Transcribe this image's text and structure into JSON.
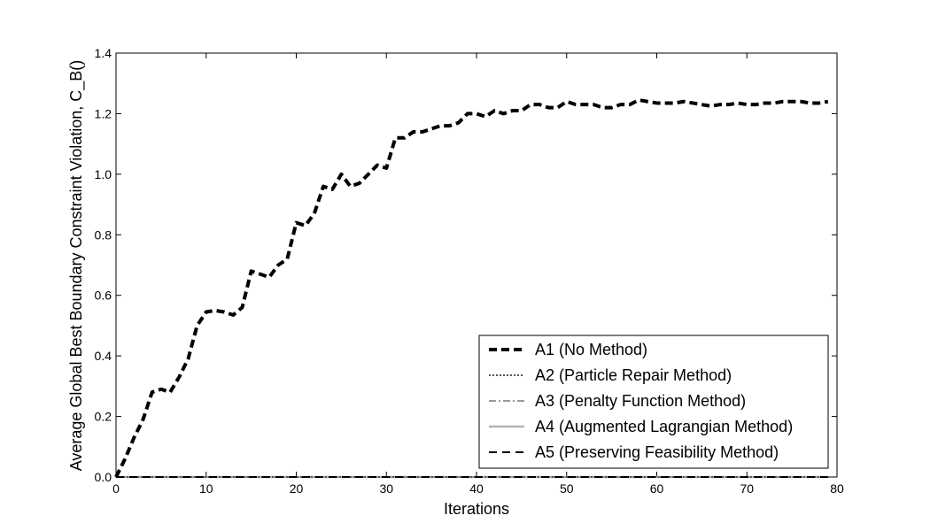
{
  "chart_data": {
    "type": "line",
    "title": "",
    "xlabel": "Iterations",
    "ylabel": "Average Global Best Boundary Constraint Violation, C_B()",
    "xlim": [
      0,
      80
    ],
    "ylim": [
      0,
      1.4
    ],
    "xticks": [
      "0",
      "10",
      "20",
      "30",
      "40",
      "50",
      "60",
      "70",
      "80"
    ],
    "yticks": [
      "0.0",
      "0.2",
      "0.4",
      "0.6",
      "0.8",
      "1.0",
      "1.2",
      "1.4"
    ],
    "grid": false,
    "legend_position": "lower-right",
    "x": [
      0,
      1,
      2,
      3,
      4,
      5,
      6,
      7,
      8,
      9,
      10,
      11,
      12,
      13,
      14,
      15,
      16,
      17,
      18,
      19,
      20,
      21,
      22,
      23,
      24,
      25,
      26,
      27,
      28,
      29,
      30,
      31,
      32,
      33,
      34,
      35,
      36,
      37,
      38,
      39,
      40,
      41,
      42,
      43,
      44,
      45,
      46,
      47,
      48,
      49,
      50,
      51,
      52,
      53,
      54,
      55,
      56,
      57,
      58,
      59,
      60,
      61,
      62,
      63,
      64,
      65,
      66,
      67,
      68,
      69,
      70,
      71,
      72,
      73,
      74,
      75,
      76,
      77,
      78,
      79
    ],
    "series": [
      {
        "name": "A1 (No Method)",
        "style": "thick-dashed",
        "color": "#000000",
        "values": [
          0.0,
          0.06,
          0.13,
          0.19,
          0.28,
          0.29,
          0.28,
          0.33,
          0.39,
          0.5,
          0.545,
          0.55,
          0.545,
          0.535,
          0.56,
          0.68,
          0.67,
          0.66,
          0.7,
          0.72,
          0.84,
          0.83,
          0.87,
          0.96,
          0.95,
          1.0,
          0.96,
          0.97,
          1.0,
          1.03,
          1.02,
          1.12,
          1.12,
          1.14,
          1.14,
          1.15,
          1.16,
          1.16,
          1.17,
          1.2,
          1.2,
          1.19,
          1.21,
          1.2,
          1.21,
          1.21,
          1.23,
          1.23,
          1.22,
          1.22,
          1.24,
          1.23,
          1.23,
          1.23,
          1.22,
          1.22,
          1.23,
          1.23,
          1.245,
          1.24,
          1.235,
          1.235,
          1.235,
          1.24,
          1.235,
          1.23,
          1.225,
          1.23,
          1.23,
          1.235,
          1.23,
          1.23,
          1.235,
          1.235,
          1.24,
          1.24,
          1.24,
          1.235,
          1.235,
          1.24
        ]
      },
      {
        "name": "A2 (Particle Repair Method)",
        "style": "dotted",
        "color": "#555555",
        "constant": 0.0
      },
      {
        "name": "A3 (Penalty Function Method)",
        "style": "dash-dot",
        "color": "#999999",
        "constant": 0.0
      },
      {
        "name": "A4 (Augmented Lagrangian Method)",
        "style": "solid",
        "color": "#b3b3b3",
        "constant": 0.0
      },
      {
        "name": "A5 (Preserving Feasibility Method)",
        "style": "dashed",
        "color": "#000000",
        "constant": 0.0
      }
    ]
  }
}
